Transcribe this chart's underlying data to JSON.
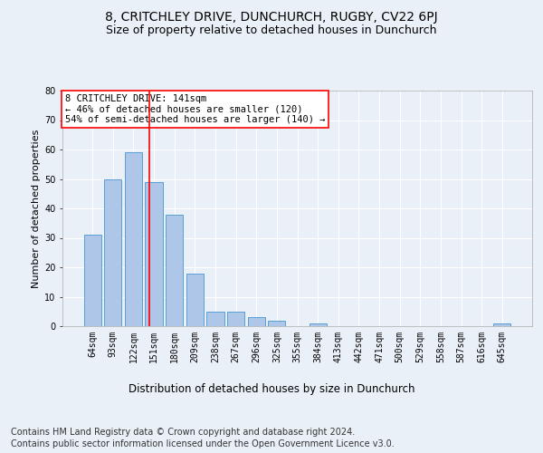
{
  "title1": "8, CRITCHLEY DRIVE, DUNCHURCH, RUGBY, CV22 6PJ",
  "title2": "Size of property relative to detached houses in Dunchurch",
  "xlabel": "Distribution of detached houses by size in Dunchurch",
  "ylabel": "Number of detached properties",
  "footer1": "Contains HM Land Registry data © Crown copyright and database right 2024.",
  "footer2": "Contains public sector information licensed under the Open Government Licence v3.0.",
  "bin_labels": [
    "64sqm",
    "93sqm",
    "122sqm",
    "151sqm",
    "180sqm",
    "209sqm",
    "238sqm",
    "267sqm",
    "296sqm",
    "325sqm",
    "355sqm",
    "384sqm",
    "413sqm",
    "442sqm",
    "471sqm",
    "500sqm",
    "529sqm",
    "558sqm",
    "587sqm",
    "616sqm",
    "645sqm"
  ],
  "bar_values": [
    31,
    50,
    59,
    49,
    38,
    18,
    5,
    5,
    3,
    2,
    0,
    1,
    0,
    0,
    0,
    0,
    0,
    0,
    0,
    0,
    1
  ],
  "bar_color": "#aec6e8",
  "bar_edge_color": "#5a9fd4",
  "vline_x": 2.77,
  "vline_color": "red",
  "annotation_text": "8 CRITCHLEY DRIVE: 141sqm\n← 46% of detached houses are smaller (120)\n54% of semi-detached houses are larger (140) →",
  "annotation_box_color": "white",
  "annotation_box_edge_color": "red",
  "ylim": [
    0,
    80
  ],
  "yticks": [
    0,
    10,
    20,
    30,
    40,
    50,
    60,
    70,
    80
  ],
  "bg_color": "#eaf0f8",
  "plot_bg_color": "#eaf0f8",
  "grid_color": "white",
  "title1_fontsize": 10,
  "title2_fontsize": 9,
  "xlabel_fontsize": 8.5,
  "ylabel_fontsize": 8,
  "footer_fontsize": 7,
  "tick_fontsize": 7,
  "annot_fontsize": 7.5
}
